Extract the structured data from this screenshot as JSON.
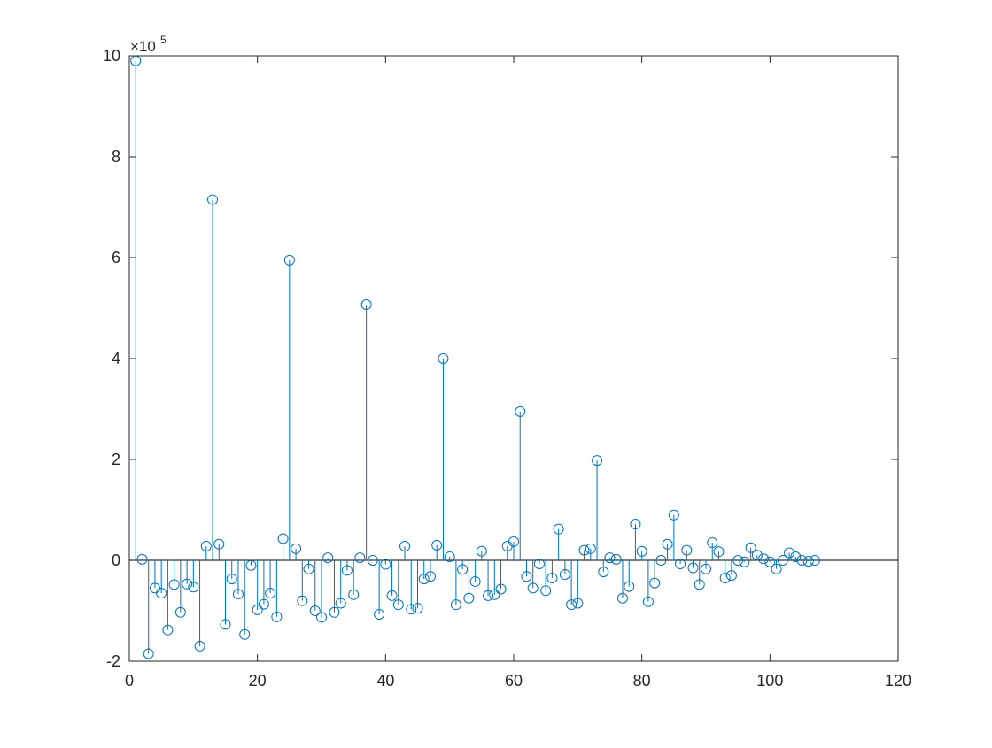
{
  "chart_data": {
    "type": "stem",
    "title": "",
    "xlabel": "",
    "ylabel": "",
    "xlim": [
      0,
      120
    ],
    "ylim": [
      -2,
      10
    ],
    "y_exponent_label": "×10",
    "y_exponent_power": "5",
    "x_ticks": [
      0,
      20,
      40,
      60,
      80,
      100,
      120
    ],
    "x_tick_labels": [
      "0",
      "20",
      "40",
      "60",
      "80",
      "100",
      "120"
    ],
    "y_ticks": [
      -2,
      0,
      2,
      4,
      6,
      8,
      10
    ],
    "y_tick_labels": [
      "-2",
      "0",
      "2",
      "4",
      "6",
      "8",
      "10"
    ],
    "grid": false,
    "legend": "none",
    "colors": {
      "series": "#0072BD",
      "axes": "#262626",
      "baseline": "#000000"
    },
    "series": [
      {
        "x": [
          1,
          2,
          3,
          4,
          5,
          6,
          7,
          8,
          9,
          10,
          11,
          12,
          13,
          14,
          15,
          16,
          17,
          18,
          19,
          20,
          21,
          22,
          23,
          24,
          25,
          26,
          27,
          28,
          29,
          30,
          31,
          32,
          33,
          34,
          35,
          36,
          37,
          38,
          39,
          40,
          41,
          42,
          43,
          44,
          45,
          46,
          47,
          48,
          49,
          50,
          51,
          52,
          53,
          54,
          55,
          56,
          57,
          58,
          59,
          60,
          61,
          62,
          63,
          64,
          65,
          66,
          67,
          68,
          69,
          70,
          71,
          72,
          73,
          74,
          75,
          76,
          77,
          78,
          79,
          80,
          81,
          82,
          83,
          84,
          85,
          86,
          87,
          88,
          89,
          90,
          91,
          92,
          93,
          94,
          95,
          96,
          97,
          98,
          99,
          100,
          101,
          102,
          103,
          104,
          105,
          106,
          107
        ],
        "values": [
          9.9,
          0.02,
          -1.85,
          -0.55,
          -0.65,
          -1.38,
          -0.48,
          -1.03,
          -0.47,
          -0.53,
          -1.7,
          0.28,
          7.15,
          0.32,
          -1.27,
          -0.37,
          -0.67,
          -1.47,
          -0.1,
          -0.98,
          -0.87,
          -0.65,
          -1.12,
          0.43,
          5.95,
          0.23,
          -0.8,
          -0.17,
          -1.0,
          -1.13,
          0.05,
          -1.03,
          -0.85,
          -0.2,
          -0.68,
          0.05,
          5.07,
          0.0,
          -1.07,
          -0.08,
          -0.7,
          -0.88,
          0.28,
          -0.97,
          -0.95,
          -0.37,
          -0.32,
          0.3,
          4.0,
          0.07,
          -0.88,
          -0.18,
          -0.75,
          -0.42,
          0.18,
          -0.7,
          -0.68,
          -0.57,
          0.28,
          0.37,
          2.95,
          -0.32,
          -0.55,
          -0.07,
          -0.6,
          -0.35,
          0.62,
          -0.28,
          -0.88,
          -0.85,
          0.2,
          0.23,
          1.98,
          -0.23,
          0.05,
          0.02,
          -0.75,
          -0.52,
          0.72,
          0.18,
          -0.82,
          -0.45,
          0.0,
          0.32,
          0.9,
          -0.07,
          0.2,
          -0.15,
          -0.48,
          -0.17,
          0.35,
          0.17,
          -0.35,
          -0.3,
          0.0,
          -0.03,
          0.25,
          0.1,
          0.03,
          -0.03,
          -0.17,
          0.0,
          0.15,
          0.07,
          0.0,
          -0.02,
          0.0
        ]
      }
    ]
  }
}
